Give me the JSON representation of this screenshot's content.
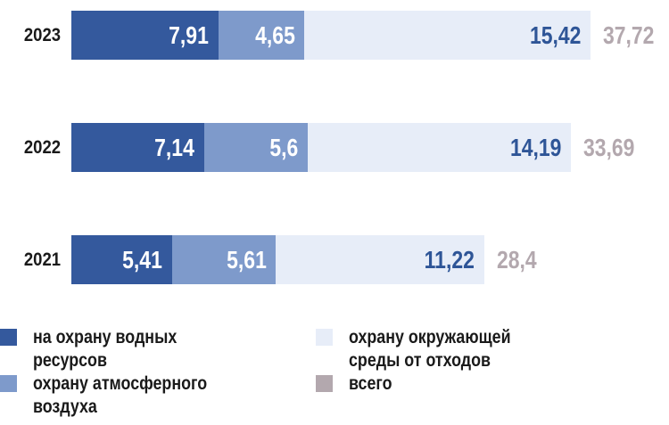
{
  "chart_data": {
    "type": "bar",
    "orientation": "horizontal",
    "stacked": true,
    "grid": false,
    "axes_shown": false,
    "legend_position": "bottom",
    "categories": [
      "2023",
      "2022",
      "2021"
    ],
    "series": [
      {
        "key": "water-protection",
        "name": "на охрану водных ресурсов",
        "color": "#34599d",
        "text_color": "#ffffff",
        "values": [
          7.91,
          7.14,
          5.41
        ],
        "labels": [
          "7,91",
          "7,14",
          "5,41"
        ]
      },
      {
        "key": "air-protection",
        "name": "охрану атмосферного воздуха",
        "color": "#7e9acb",
        "text_color": "#ffffff",
        "values": [
          4.65,
          5.6,
          5.61
        ],
        "labels": [
          "4,65",
          "5,6",
          "5,61"
        ]
      },
      {
        "key": "waste-protection",
        "name": "охрану окружающей среды от отходов",
        "color": "#e7edf8",
        "text_color": "#2e5597",
        "values": [
          15.42,
          14.19,
          11.22
        ],
        "labels": [
          "15,42",
          "14,19",
          "11,22"
        ]
      }
    ],
    "totals": {
      "key": "total",
      "name": "всего",
      "color": "#b3a8ae",
      "values": [
        37.72,
        33.69,
        28.4
      ],
      "labels": [
        "37,72",
        "33,69",
        "28,4"
      ]
    }
  },
  "legend": {
    "items": [
      {
        "label": "на охрану водных\nресурсов",
        "color": "#34599d"
      },
      {
        "label": "охрану атмосферного\nвоздуха",
        "color": "#7e9acb"
      },
      {
        "label": "охрану окружающей\nсреды от отходов",
        "color": "#e7edf8"
      },
      {
        "label": "всего",
        "color": "#b3a8ae"
      }
    ]
  },
  "colors": {
    "background": "#ffffff",
    "year_text": "#1a1a1a",
    "total_text": "#b3a8ae"
  }
}
